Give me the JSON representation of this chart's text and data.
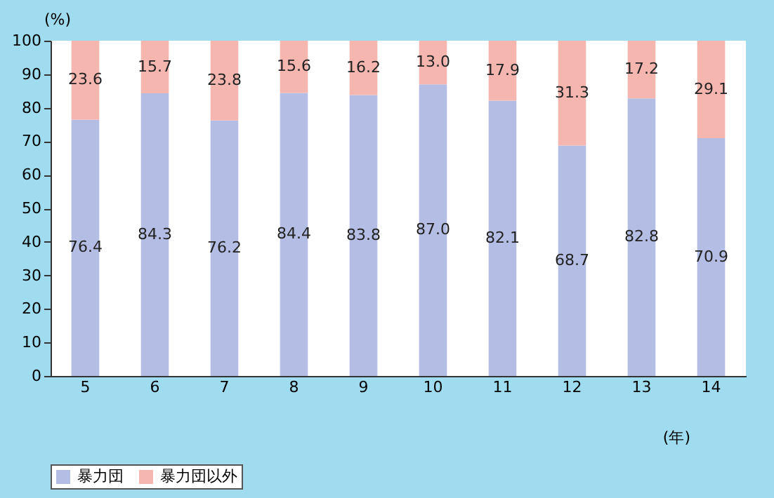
{
  "chart_data": {
    "type": "bar",
    "stacked": true,
    "categories": [
      "5",
      "6",
      "7",
      "8",
      "9",
      "10",
      "11",
      "12",
      "13",
      "14"
    ],
    "series": [
      {
        "name": "暴力団",
        "color": "#b4bde3",
        "values": [
          76.4,
          84.3,
          76.2,
          84.4,
          83.8,
          87.0,
          82.1,
          68.7,
          82.8,
          70.9
        ],
        "value_labels": [
          "76.4",
          "84.3",
          "76.2",
          "84.4",
          "83.8",
          "87.0",
          "82.1",
          "68.7",
          "82.8",
          "70.9"
        ]
      },
      {
        "name": "暴力団以外",
        "color": "#f6b6b0",
        "values": [
          23.6,
          15.7,
          23.8,
          15.6,
          16.2,
          13.0,
          17.9,
          31.3,
          17.2,
          29.1
        ],
        "value_labels": [
          "23.6",
          "15.7",
          "23.8",
          "15.6",
          "16.2",
          "13.0",
          "17.9",
          "31.3",
          "17.2",
          "29.1"
        ]
      }
    ],
    "ylim": [
      0,
      100
    ],
    "yticks": [
      0,
      10,
      20,
      30,
      40,
      50,
      60,
      70,
      80,
      90,
      100
    ],
    "xlabel": "(年)",
    "ylabel": "(%)",
    "grid": false,
    "legend": "bottom left"
  }
}
